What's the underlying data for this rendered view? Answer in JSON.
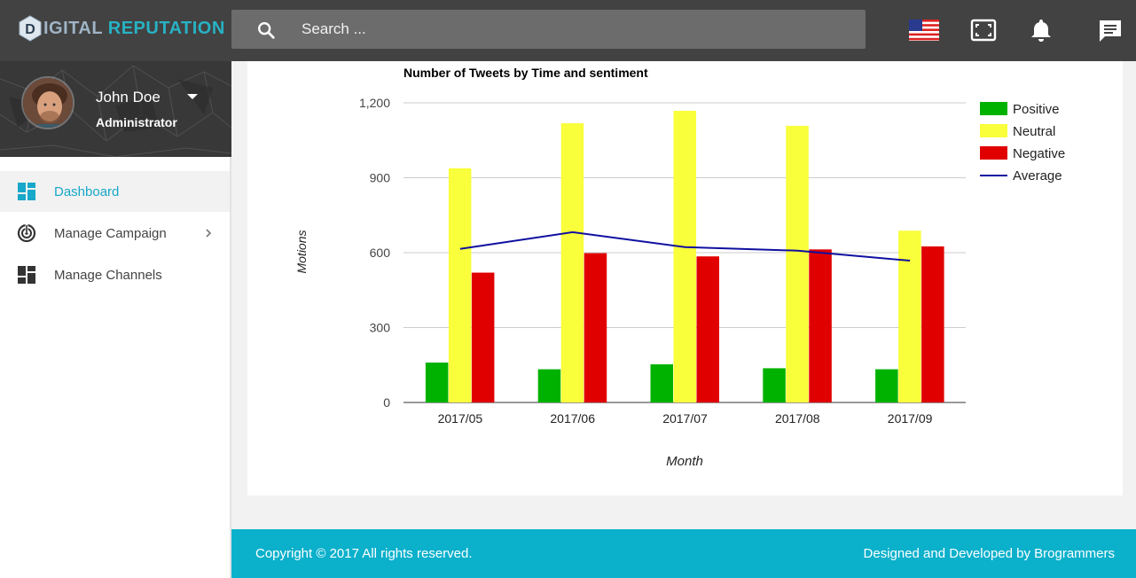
{
  "header": {
    "logo_letter": "D",
    "logo_part1": "IGITAL",
    "logo_part2": "REPUTATION",
    "search_placeholder": "Search ...",
    "icons": [
      "search-icon",
      "us-flag-icon",
      "fullscreen-icon",
      "bell-icon",
      "chat-icon"
    ]
  },
  "profile": {
    "name": "John Doe",
    "role": "Administrator"
  },
  "sidebar": {
    "items": [
      {
        "label": "Dashboard",
        "icon": "dashboard-icon",
        "active": true
      },
      {
        "label": "Manage Campaign",
        "icon": "target-icon",
        "active": false,
        "has_submenu": true
      },
      {
        "label": "Manage Channels",
        "icon": "channels-icon",
        "active": false
      }
    ]
  },
  "chart_data": {
    "type": "bar",
    "title": "Number of Tweets by Time and sentiment",
    "xlabel": "Month",
    "ylabel": "Motions",
    "ylim": [
      0,
      1200
    ],
    "yticks": [
      0,
      300,
      600,
      900,
      1200
    ],
    "ytick_labels": [
      "0",
      "300",
      "600",
      "900",
      "1,200"
    ],
    "categories": [
      "2017/05",
      "2017/06",
      "2017/07",
      "2017/08",
      "2017/09"
    ],
    "series": [
      {
        "name": "Positive",
        "color": "#00b200",
        "values": [
          160,
          133,
          153,
          137,
          133
        ]
      },
      {
        "name": "Neutral",
        "color": "#f9ff3a",
        "values": [
          938,
          1118,
          1168,
          1108,
          688
        ]
      },
      {
        "name": "Negative",
        "color": "#e00000",
        "values": [
          520,
          598,
          585,
          613,
          625
        ]
      }
    ],
    "line_series": {
      "name": "Average",
      "color": "#1010a0",
      "type": "line",
      "values": [
        615,
        682,
        622,
        608,
        568
      ]
    },
    "legend_position": "right",
    "grid": true
  },
  "footer": {
    "copyright": "Copyright © 2017 All rights reserved.",
    "credits": "Designed and Developed by Brogrammers"
  }
}
